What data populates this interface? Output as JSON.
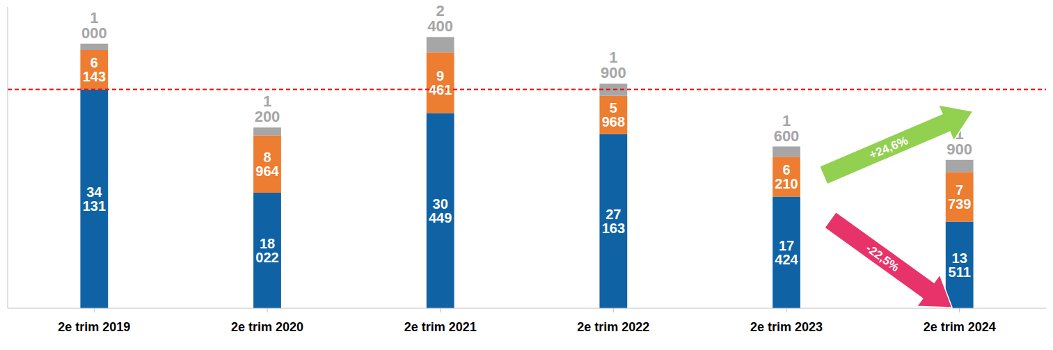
{
  "chart_data": {
    "type": "bar",
    "stacked": true,
    "data_labels": true,
    "tick_labels": "x",
    "grid": false,
    "categories": [
      "2e trim 2019",
      "2e trim 2020",
      "2e trim 2021",
      "2e trim 2022",
      "2e trim 2023",
      "2e trim 2024"
    ],
    "series": [
      {
        "color": "#0f63a5",
        "values": [
          34131,
          18022,
          30449,
          27163,
          17424,
          13511
        ],
        "value_labels": [
          "34 131",
          "18 022",
          "30 449",
          "27 163",
          "17 424",
          "13 511"
        ]
      },
      {
        "color": "#ed7d31",
        "values": [
          6143,
          8964,
          9461,
          5968,
          6210,
          7739
        ],
        "value_labels": [
          "6 143",
          "8 964",
          "9 461",
          "5 968",
          "6 210",
          "7 739"
        ]
      },
      {
        "color": "#a6a6a6",
        "values": [
          1000,
          1200,
          2400,
          1900,
          1600,
          1900
        ],
        "value_labels": [
          "1 000",
          "1 200",
          "2 400",
          "1 900",
          "1 600",
          "1 900"
        ]
      }
    ],
    "ylim": [
      0,
      47000
    ],
    "reference_line": 34131,
    "annotations": [
      {
        "text": "+24,6%"
      },
      {
        "text": "-22,5%"
      }
    ]
  }
}
